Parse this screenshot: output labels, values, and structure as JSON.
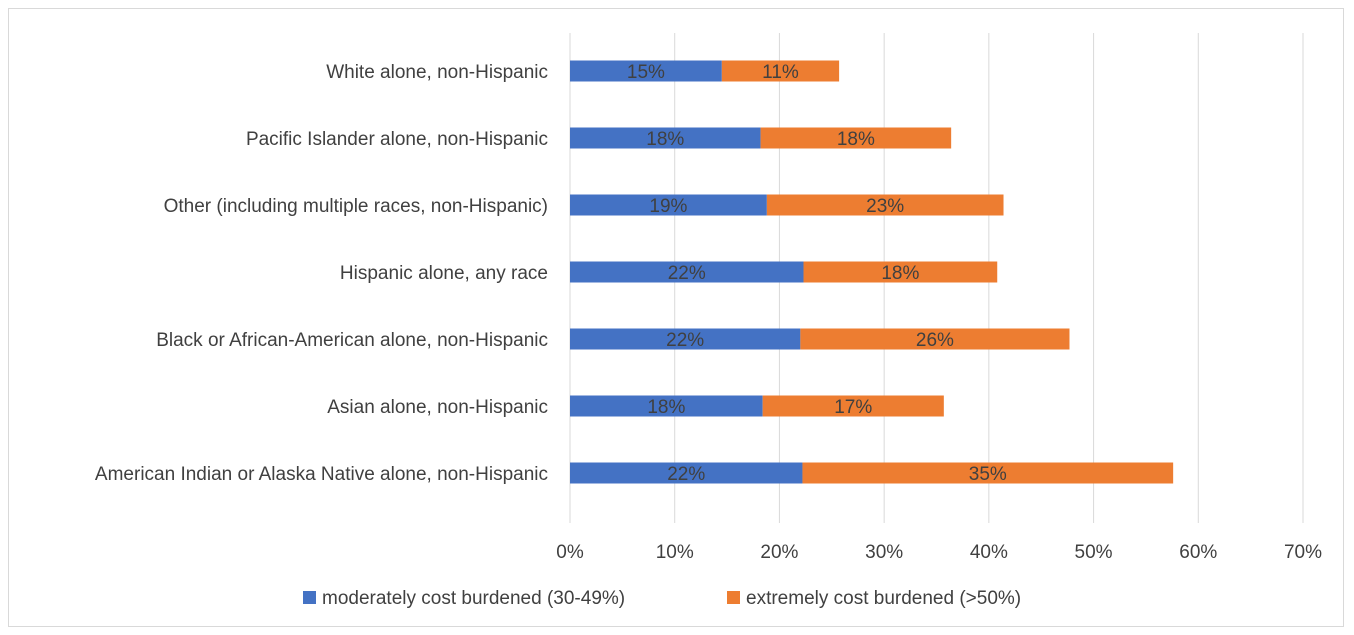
{
  "chart_data": {
    "type": "bar",
    "orientation": "horizontal",
    "stacked": true,
    "categories": [
      "White alone, non-Hispanic",
      "Pacific Islander alone, non-Hispanic",
      "Other (including multiple races, non-Hispanic)",
      "Hispanic alone, any race",
      "Black or African-American alone, non-Hispanic",
      "Asian alone, non-Hispanic",
      "American Indian or Alaska Native alone, non-Hispanic"
    ],
    "series": [
      {
        "name": "moderately cost burdened (30-49%)",
        "color": "#4472c4",
        "values": [
          14.5,
          18.2,
          18.8,
          22.3,
          22.0,
          18.4,
          22.2
        ],
        "labels": [
          "15%",
          "18%",
          "19%",
          "22%",
          "22%",
          "18%",
          "22%"
        ]
      },
      {
        "name": "extremely cost burdened (>50%)",
        "color": "#ed7d31",
        "values": [
          11.2,
          18.2,
          22.6,
          18.5,
          25.7,
          17.3,
          35.4
        ],
        "labels": [
          "11%",
          "18%",
          "23%",
          "18%",
          "26%",
          "17%",
          "35%"
        ]
      }
    ],
    "xlim": [
      0,
      70
    ],
    "ticks": [
      0,
      10,
      20,
      30,
      40,
      50,
      60,
      70
    ],
    "tick_labels": [
      "0%",
      "10%",
      "20%",
      "30%",
      "40%",
      "50%",
      "60%",
      "70%"
    ],
    "grid": true,
    "legend_position": "bottom",
    "title": "",
    "xlabel": "",
    "ylabel": ""
  }
}
